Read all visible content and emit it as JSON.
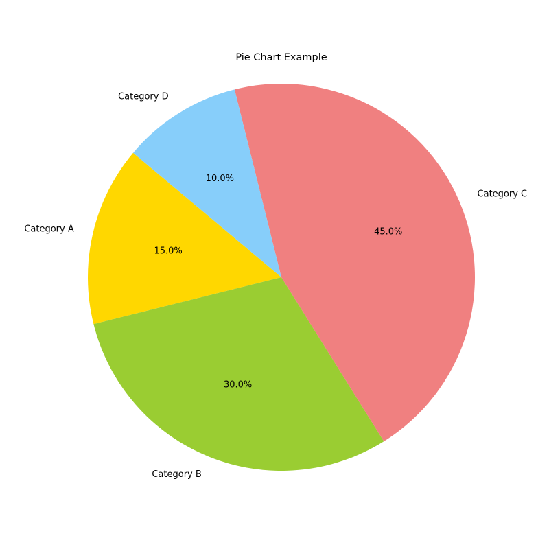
{
  "chart_data": {
    "type": "pie",
    "title": "Pie Chart Example",
    "categories": [
      "Category A",
      "Category B",
      "Category C",
      "Category D"
    ],
    "values": [
      15,
      30,
      45,
      10
    ],
    "percent_labels": [
      "15.0%",
      "30.0%",
      "45.0%",
      "10.0%"
    ],
    "colors": [
      "#ffd700",
      "#9acd32",
      "#f08080",
      "#87cefa"
    ],
    "start_angle_deg": 140,
    "direction": "counterclockwise",
    "legend": "none"
  }
}
